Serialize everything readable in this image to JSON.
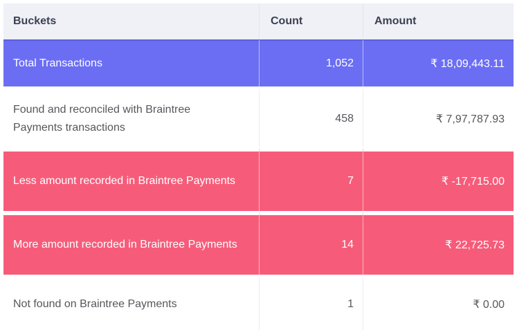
{
  "table": {
    "columns": {
      "buckets": "Buckets",
      "count": "Count",
      "amount": "Amount"
    },
    "rows": [
      {
        "bucket": "Total Transactions",
        "count": "1,052",
        "amount": "₹ 18,09,443.11",
        "highlight": "blue"
      },
      {
        "bucket": "Found and reconciled with Braintree Payments transactions",
        "count": "458",
        "amount": "₹ 7,97,787.93",
        "highlight": "none"
      },
      {
        "bucket": "Less amount recorded in Braintree Payments",
        "count": "7",
        "amount": "₹ -17,715.00",
        "highlight": "pink"
      },
      {
        "bucket": "More amount recorded in Braintree Payments",
        "count": "14",
        "amount": "₹ 22,725.73",
        "highlight": "pink"
      },
      {
        "bucket": "Not found on Braintree Payments",
        "count": "1",
        "amount": "₹ 0.00",
        "highlight": "none"
      }
    ],
    "colors": {
      "highlight_blue": "#6b6ef3",
      "highlight_pink": "#f65c7a",
      "header_bg": "#eff1f7",
      "header_text": "#3c4050",
      "body_text": "#56575c"
    }
  }
}
